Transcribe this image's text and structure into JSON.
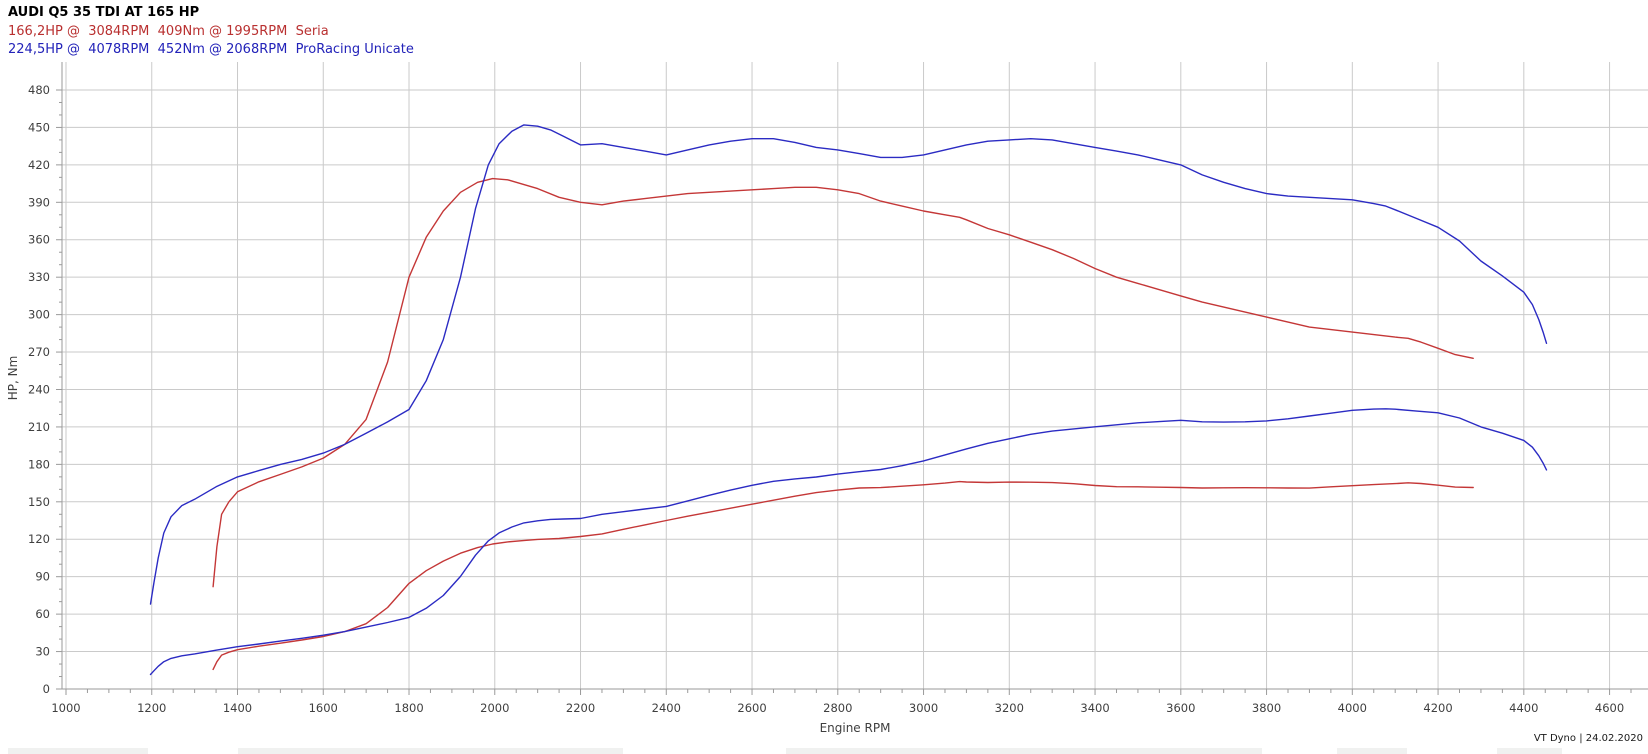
{
  "header": {
    "title": "AUDI Q5 35 TDI AT 165 HP",
    "runs": [
      {
        "name": "Seria",
        "color": "#b93030",
        "power": "166,2HP",
        "power_rpm": "3084RPM",
        "torque": "409Nm",
        "torque_rpm": "1995RPM",
        "line": "166,2HP @  3084RPM  409Nm @ 1995RPM  Seria"
      },
      {
        "name": "ProRacing Unicate",
        "color": "#2323b9",
        "power": "224,5HP",
        "power_rpm": "4078RPM",
        "torque": "452Nm",
        "torque_rpm": "2068RPM",
        "line": "224,5HP @  4078RPM  452Nm @ 2068RPM  ProRacing Unicate"
      }
    ]
  },
  "footer": {
    "watermark": "VT Dyno | 24.02.2020"
  },
  "chart_data": {
    "type": "line",
    "title": "AUDI Q5 35 TDI AT 165 HP",
    "xlabel": "Engine RPM",
    "ylabel": "HP, Nm",
    "xlim": [
      1000,
      4600
    ],
    "ylim": [
      0,
      480
    ],
    "grid": true,
    "legend_position": "top-left-header-text",
    "x_ticks": [
      1000,
      1200,
      1400,
      1600,
      1800,
      2000,
      2200,
      2400,
      2600,
      2800,
      3000,
      3200,
      3400,
      3600,
      3800,
      4000,
      4200,
      4400,
      4600
    ],
    "y_ticks": [
      0,
      30,
      60,
      90,
      120,
      150,
      180,
      210,
      240,
      270,
      300,
      330,
      360,
      390,
      420,
      450,
      480
    ],
    "x_minor_step": 50,
    "y_minor_step": 10,
    "colors": {
      "grid": "#cacaca",
      "axis": "#9a9a9a",
      "tick_label": "#3f3f3f",
      "seria": "#c43737",
      "proracing": "#2b2bc3"
    },
    "series": [
      {
        "name": "Seria torque",
        "unit": "Nm",
        "color": "#c43737",
        "peak": {
          "value": 409,
          "rpm": 1995
        },
        "points": [
          [
            1343,
            82
          ],
          [
            1352,
            114
          ],
          [
            1363,
            140
          ],
          [
            1380,
            150
          ],
          [
            1400,
            158
          ],
          [
            1450,
            166
          ],
          [
            1500,
            172
          ],
          [
            1550,
            178
          ],
          [
            1600,
            185
          ],
          [
            1650,
            196
          ],
          [
            1700,
            216
          ],
          [
            1750,
            262
          ],
          [
            1800,
            330
          ],
          [
            1840,
            362
          ],
          [
            1880,
            383
          ],
          [
            1920,
            398
          ],
          [
            1960,
            406
          ],
          [
            1995,
            409
          ],
          [
            2030,
            408
          ],
          [
            2070,
            404
          ],
          [
            2100,
            401
          ],
          [
            2150,
            394
          ],
          [
            2200,
            390
          ],
          [
            2250,
            388
          ],
          [
            2300,
            391
          ],
          [
            2350,
            393
          ],
          [
            2400,
            395
          ],
          [
            2450,
            397
          ],
          [
            2500,
            398
          ],
          [
            2550,
            399
          ],
          [
            2600,
            400
          ],
          [
            2650,
            401
          ],
          [
            2700,
            402
          ],
          [
            2750,
            402
          ],
          [
            2800,
            400
          ],
          [
            2850,
            397
          ],
          [
            2900,
            391
          ],
          [
            2950,
            387
          ],
          [
            3000,
            383
          ],
          [
            3050,
            380
          ],
          [
            3084,
            378
          ],
          [
            3100,
            376
          ],
          [
            3150,
            369
          ],
          [
            3200,
            364
          ],
          [
            3250,
            358
          ],
          [
            3300,
            352
          ],
          [
            3350,
            345
          ],
          [
            3400,
            337
          ],
          [
            3450,
            330
          ],
          [
            3500,
            325
          ],
          [
            3550,
            320
          ],
          [
            3600,
            315
          ],
          [
            3650,
            310
          ],
          [
            3700,
            306
          ],
          [
            3750,
            302
          ],
          [
            3800,
            298
          ],
          [
            3850,
            294
          ],
          [
            3900,
            290
          ],
          [
            3950,
            288
          ],
          [
            4000,
            286
          ],
          [
            4050,
            284
          ],
          [
            4100,
            282
          ],
          [
            4130,
            281
          ],
          [
            4160,
            278
          ],
          [
            4200,
            273
          ],
          [
            4240,
            268
          ],
          [
            4282,
            265
          ]
        ]
      },
      {
        "name": "ProRacing Unicate torque",
        "unit": "Nm",
        "color": "#2b2bc3",
        "peak": {
          "value": 452,
          "rpm": 2068
        },
        "points": [
          [
            1197,
            68
          ],
          [
            1205,
            85
          ],
          [
            1215,
            105
          ],
          [
            1228,
            125
          ],
          [
            1245,
            138
          ],
          [
            1270,
            147
          ],
          [
            1300,
            152
          ],
          [
            1350,
            162
          ],
          [
            1400,
            170
          ],
          [
            1450,
            175
          ],
          [
            1500,
            180
          ],
          [
            1550,
            184
          ],
          [
            1600,
            189
          ],
          [
            1650,
            196
          ],
          [
            1700,
            205
          ],
          [
            1750,
            214
          ],
          [
            1800,
            224
          ],
          [
            1840,
            247
          ],
          [
            1880,
            280
          ],
          [
            1920,
            330
          ],
          [
            1955,
            385
          ],
          [
            1985,
            420
          ],
          [
            2010,
            437
          ],
          [
            2040,
            447
          ],
          [
            2068,
            452
          ],
          [
            2100,
            451
          ],
          [
            2130,
            448
          ],
          [
            2160,
            443
          ],
          [
            2200,
            436
          ],
          [
            2250,
            437
          ],
          [
            2300,
            434
          ],
          [
            2350,
            431
          ],
          [
            2400,
            428
          ],
          [
            2450,
            432
          ],
          [
            2500,
            436
          ],
          [
            2550,
            439
          ],
          [
            2600,
            441
          ],
          [
            2650,
            441
          ],
          [
            2700,
            438
          ],
          [
            2750,
            434
          ],
          [
            2800,
            432
          ],
          [
            2850,
            429
          ],
          [
            2900,
            426
          ],
          [
            2950,
            426
          ],
          [
            3000,
            428
          ],
          [
            3050,
            432
          ],
          [
            3100,
            436
          ],
          [
            3150,
            439
          ],
          [
            3200,
            440
          ],
          [
            3250,
            441
          ],
          [
            3300,
            440
          ],
          [
            3350,
            437
          ],
          [
            3400,
            434
          ],
          [
            3450,
            431
          ],
          [
            3500,
            428
          ],
          [
            3550,
            424
          ],
          [
            3600,
            420
          ],
          [
            3650,
            412
          ],
          [
            3700,
            406
          ],
          [
            3750,
            401
          ],
          [
            3800,
            397
          ],
          [
            3850,
            395
          ],
          [
            3900,
            394
          ],
          [
            3950,
            393
          ],
          [
            4000,
            392
          ],
          [
            4050,
            389
          ],
          [
            4078,
            387
          ],
          [
            4100,
            384
          ],
          [
            4150,
            377
          ],
          [
            4200,
            370
          ],
          [
            4250,
            359
          ],
          [
            4300,
            343
          ],
          [
            4350,
            331
          ],
          [
            4400,
            318
          ],
          [
            4420,
            308
          ],
          [
            4435,
            296
          ],
          [
            4445,
            286
          ],
          [
            4453,
            277
          ]
        ]
      },
      {
        "name": "Seria power",
        "unit": "HP",
        "color": "#c43737",
        "peak": {
          "value": 166.2,
          "rpm": 3084
        },
        "points": [
          [
            1343,
            15.7
          ],
          [
            1352,
            21.9
          ],
          [
            1363,
            27.2
          ],
          [
            1380,
            29.5
          ],
          [
            1400,
            31.5
          ],
          [
            1450,
            34.3
          ],
          [
            1500,
            36.7
          ],
          [
            1550,
            39.3
          ],
          [
            1600,
            42.1
          ],
          [
            1650,
            46.0
          ],
          [
            1700,
            52.3
          ],
          [
            1750,
            65.3
          ],
          [
            1800,
            84.6
          ],
          [
            1840,
            94.8
          ],
          [
            1880,
            102.5
          ],
          [
            1920,
            108.8
          ],
          [
            1960,
            113.3
          ],
          [
            1995,
            116.2
          ],
          [
            2030,
            117.9
          ],
          [
            2070,
            119.1
          ],
          [
            2100,
            119.9
          ],
          [
            2150,
            120.6
          ],
          [
            2200,
            122.2
          ],
          [
            2250,
            124.3
          ],
          [
            2300,
            128.0
          ],
          [
            2350,
            131.5
          ],
          [
            2400,
            135.0
          ],
          [
            2450,
            138.5
          ],
          [
            2500,
            141.7
          ],
          [
            2550,
            144.9
          ],
          [
            2600,
            148.1
          ],
          [
            2650,
            151.3
          ],
          [
            2700,
            154.5
          ],
          [
            2750,
            157.4
          ],
          [
            2800,
            159.4
          ],
          [
            2850,
            161.1
          ],
          [
            2900,
            161.4
          ],
          [
            2950,
            162.5
          ],
          [
            3000,
            163.6
          ],
          [
            3050,
            165.0
          ],
          [
            3084,
            166.2
          ],
          [
            3100,
            165.9
          ],
          [
            3150,
            165.5
          ],
          [
            3200,
            165.8
          ],
          [
            3250,
            165.7
          ],
          [
            3300,
            165.4
          ],
          [
            3350,
            164.5
          ],
          [
            3400,
            163.1
          ],
          [
            3450,
            162.1
          ],
          [
            3500,
            162.0
          ],
          [
            3550,
            161.7
          ],
          [
            3600,
            161.5
          ],
          [
            3650,
            161.1
          ],
          [
            3700,
            161.2
          ],
          [
            3750,
            161.3
          ],
          [
            3800,
            161.2
          ],
          [
            3850,
            161.1
          ],
          [
            3900,
            161.0
          ],
          [
            3950,
            162.0
          ],
          [
            4000,
            162.9
          ],
          [
            4050,
            163.8
          ],
          [
            4100,
            164.6
          ],
          [
            4130,
            165.2
          ],
          [
            4160,
            164.7
          ],
          [
            4200,
            163.3
          ],
          [
            4240,
            161.8
          ],
          [
            4282,
            161.5
          ]
        ]
      },
      {
        "name": "ProRacing Unicate power",
        "unit": "HP",
        "color": "#2b2bc3",
        "peak": {
          "value": 224.5,
          "rpm": 4078
        },
        "points": [
          [
            1197,
            11.6
          ],
          [
            1205,
            14.6
          ],
          [
            1215,
            18.2
          ],
          [
            1228,
            21.9
          ],
          [
            1245,
            24.5
          ],
          [
            1270,
            26.6
          ],
          [
            1300,
            28.1
          ],
          [
            1350,
            31.1
          ],
          [
            1400,
            33.9
          ],
          [
            1450,
            36.1
          ],
          [
            1500,
            38.4
          ],
          [
            1550,
            40.6
          ],
          [
            1600,
            43.1
          ],
          [
            1650,
            46.0
          ],
          [
            1700,
            49.6
          ],
          [
            1750,
            53.3
          ],
          [
            1800,
            57.4
          ],
          [
            1840,
            64.7
          ],
          [
            1880,
            74.9
          ],
          [
            1920,
            90.2
          ],
          [
            1955,
            107.2
          ],
          [
            1985,
            118.7
          ],
          [
            2010,
            125.1
          ],
          [
            2040,
            129.8
          ],
          [
            2068,
            133.1
          ],
          [
            2100,
            134.8
          ],
          [
            2130,
            135.9
          ],
          [
            2160,
            136.2
          ],
          [
            2200,
            136.6
          ],
          [
            2250,
            140.0
          ],
          [
            2300,
            142.1
          ],
          [
            2350,
            144.2
          ],
          [
            2400,
            146.3
          ],
          [
            2450,
            150.7
          ],
          [
            2500,
            155.2
          ],
          [
            2550,
            159.4
          ],
          [
            2600,
            163.2
          ],
          [
            2650,
            166.4
          ],
          [
            2700,
            168.4
          ],
          [
            2750,
            169.9
          ],
          [
            2800,
            172.2
          ],
          [
            2850,
            174.1
          ],
          [
            2900,
            175.9
          ],
          [
            2950,
            178.9
          ],
          [
            3000,
            182.8
          ],
          [
            3050,
            187.6
          ],
          [
            3100,
            192.4
          ],
          [
            3150,
            196.9
          ],
          [
            3200,
            200.5
          ],
          [
            3250,
            204.1
          ],
          [
            3300,
            206.7
          ],
          [
            3350,
            208.4
          ],
          [
            3400,
            210.1
          ],
          [
            3450,
            211.7
          ],
          [
            3500,
            213.3
          ],
          [
            3550,
            214.3
          ],
          [
            3600,
            215.3
          ],
          [
            3650,
            214.1
          ],
          [
            3700,
            213.9
          ],
          [
            3750,
            214.1
          ],
          [
            3800,
            214.8
          ],
          [
            3850,
            216.5
          ],
          [
            3900,
            218.8
          ],
          [
            3950,
            221.0
          ],
          [
            4000,
            223.3
          ],
          [
            4050,
            224.3
          ],
          [
            4078,
            224.5
          ],
          [
            4100,
            224.2
          ],
          [
            4150,
            222.7
          ],
          [
            4200,
            221.3
          ],
          [
            4250,
            217.2
          ],
          [
            4300,
            210.0
          ],
          [
            4350,
            205.0
          ],
          [
            4400,
            199.2
          ],
          [
            4420,
            193.8
          ],
          [
            4435,
            186.9
          ],
          [
            4445,
            181.0
          ],
          [
            4453,
            175.6
          ]
        ]
      }
    ]
  }
}
